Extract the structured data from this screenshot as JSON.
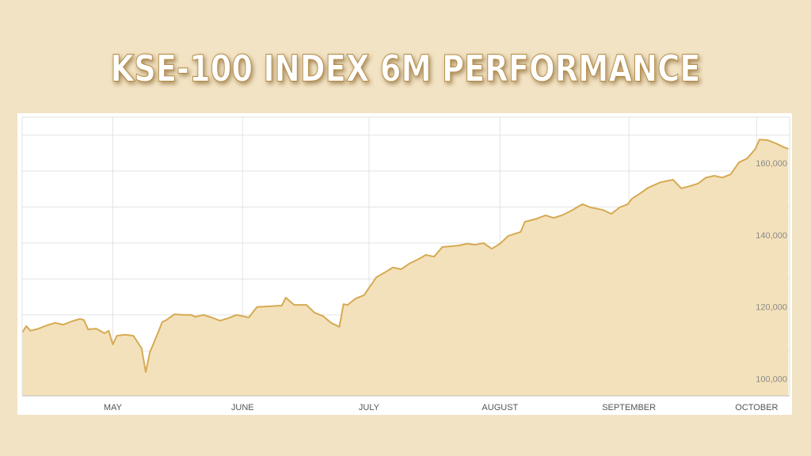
{
  "chart_data": {
    "type": "area",
    "title": "KSE-100 INDEX 6M PERFORMANCE",
    "color": "#d6aa52",
    "fill": "#f3e1bb",
    "grid": true,
    "x": [
      0,
      1,
      2,
      4,
      6,
      8,
      10,
      12,
      14,
      15,
      16,
      18,
      20,
      21,
      22,
      23,
      25,
      27,
      29,
      30,
      31,
      33,
      34,
      35,
      37,
      39,
      41,
      42,
      44,
      46,
      48,
      50,
      52,
      55,
      57,
      60,
      63,
      64,
      66,
      69,
      71,
      73,
      75,
      77,
      78,
      79,
      81,
      83,
      84,
      86,
      88,
      90,
      92,
      94,
      96,
      98,
      100,
      102,
      104,
      106,
      108,
      110,
      112,
      114,
      116,
      118,
      121,
      122,
      125,
      127,
      129,
      131,
      133,
      136,
      138,
      141,
      143,
      145,
      147,
      148,
      150,
      152,
      155,
      158,
      160,
      162,
      164,
      166,
      168,
      170,
      172,
      174,
      176,
      178,
      179,
      181,
      183,
      185,
      186
    ],
    "values": [
      115100,
      116900,
      115600,
      116200,
      117100,
      117800,
      117300,
      118200,
      118900,
      118600,
      116000,
      116200,
      114900,
      115600,
      111800,
      114200,
      114500,
      114200,
      110700,
      104100,
      109600,
      115100,
      118000,
      118600,
      120200,
      120000,
      120000,
      119500,
      120000,
      119300,
      118400,
      119100,
      120000,
      119300,
      122200,
      122400,
      122600,
      124800,
      122800,
      122800,
      120600,
      119700,
      117800,
      116700,
      123000,
      122800,
      124600,
      125500,
      127200,
      130500,
      131800,
      133200,
      132700,
      134300,
      135400,
      136700,
      136200,
      138900,
      139100,
      139300,
      139800,
      139500,
      140000,
      138400,
      139800,
      142000,
      143100,
      145900,
      146800,
      147700,
      147000,
      147700,
      148800,
      150800,
      149900,
      149200,
      148100,
      149900,
      150800,
      152300,
      153800,
      155400,
      156900,
      157600,
      155200,
      155800,
      156500,
      158200,
      158700,
      158200,
      159100,
      162400,
      163500,
      166200,
      168800,
      168600,
      167700,
      166600,
      166200
    ],
    "xlim": [
      0,
      186.3
    ],
    "xticks": [
      {
        "value": 22,
        "label": "MAY"
      },
      {
        "value": 53.5,
        "label": "JUNE"
      },
      {
        "value": 84.2,
        "label": "JULY"
      },
      {
        "value": 116,
        "label": "AUGUST"
      },
      {
        "value": 147.3,
        "label": "SEPTEMBER"
      },
      {
        "value": 178.3,
        "label": "OCTOBER"
      }
    ],
    "ylim": [
      97500,
      175000
    ],
    "yticks": [
      {
        "value": 100000,
        "label": "100,000"
      },
      {
        "value": 120000,
        "label": "120,000"
      },
      {
        "value": 140000,
        "label": "140,000"
      },
      {
        "value": 160000,
        "label": "160,000"
      }
    ],
    "minor_yticks": [
      110000,
      130000,
      150000,
      170000
    ]
  }
}
